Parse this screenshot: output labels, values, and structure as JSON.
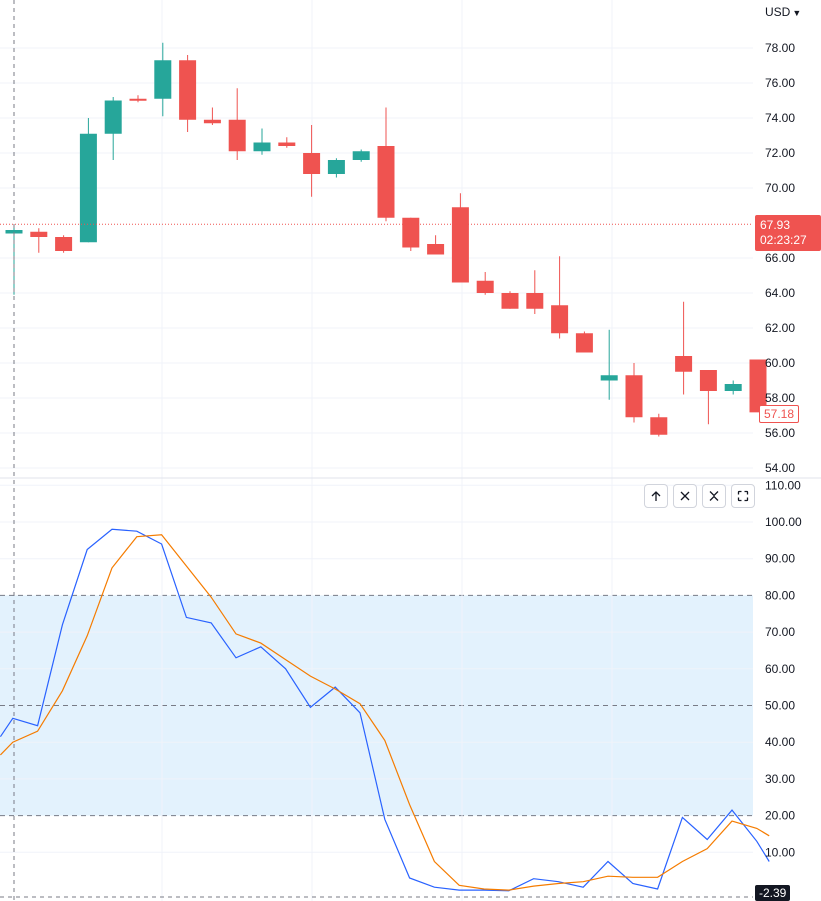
{
  "header": {
    "currency": "USD",
    "currency_icon": "chevron-down-icon"
  },
  "price_label": {
    "price": "67.93",
    "countdown": "02:23:27",
    "color": "#ef5350"
  },
  "last_label": {
    "value": "57.18",
    "color": "#ef5350"
  },
  "osc_label": {
    "value": "-2.39"
  },
  "pane_controls": [
    "arrow-up-icon",
    "close-icon",
    "collapse-icon",
    "maximize-icon"
  ],
  "colors": {
    "up": "#26a69a",
    "down": "#ef5350",
    "k_line": "#2962ff",
    "d_line": "#f57c00",
    "band": "#e3f2fd"
  },
  "chart_data": [
    {
      "type": "candlestick",
      "title": "",
      "ylim": [
        53.8,
        81.5
      ],
      "y_ticks": [
        "78.00",
        "76.00",
        "74.00",
        "72.00",
        "70.00",
        "66.00",
        "64.00",
        "62.00",
        "60.00",
        "58.00",
        "56.00",
        "54.00"
      ],
      "grid": true,
      "current_price": 67.93,
      "candles": [
        {
          "o": 67.4,
          "h": 67.8,
          "l": 63.9,
          "c": 67.6
        },
        {
          "o": 67.5,
          "h": 67.7,
          "l": 66.3,
          "c": 67.2
        },
        {
          "o": 67.2,
          "h": 67.3,
          "l": 66.3,
          "c": 66.4
        },
        {
          "o": 66.9,
          "h": 74.0,
          "l": 66.9,
          "c": 73.1
        },
        {
          "o": 73.1,
          "h": 75.2,
          "l": 71.6,
          "c": 75.0
        },
        {
          "o": 75.1,
          "h": 75.3,
          "l": 74.9,
          "c": 75.0
        },
        {
          "o": 75.1,
          "h": 78.3,
          "l": 74.1,
          "c": 77.3
        },
        {
          "o": 77.3,
          "h": 77.6,
          "l": 73.2,
          "c": 73.9
        },
        {
          "o": 73.9,
          "h": 74.6,
          "l": 73.6,
          "c": 73.7
        },
        {
          "o": 73.9,
          "h": 75.7,
          "l": 71.6,
          "c": 72.1
        },
        {
          "o": 72.1,
          "h": 73.4,
          "l": 71.9,
          "c": 72.6
        },
        {
          "o": 72.6,
          "h": 72.9,
          "l": 72.3,
          "c": 72.4
        },
        {
          "o": 72.0,
          "h": 73.6,
          "l": 69.5,
          "c": 70.8
        },
        {
          "o": 70.8,
          "h": 71.7,
          "l": 70.6,
          "c": 71.6
        },
        {
          "o": 71.6,
          "h": 72.2,
          "l": 71.5,
          "c": 72.1
        },
        {
          "o": 72.4,
          "h": 74.6,
          "l": 68.1,
          "c": 68.3
        },
        {
          "o": 68.3,
          "h": 68.3,
          "l": 66.4,
          "c": 66.6
        },
        {
          "o": 66.8,
          "h": 67.3,
          "l": 66.2,
          "c": 66.2
        },
        {
          "o": 68.9,
          "h": 69.7,
          "l": 64.6,
          "c": 64.6
        },
        {
          "o": 64.7,
          "h": 65.2,
          "l": 63.9,
          "c": 64.0
        },
        {
          "o": 64.0,
          "h": 64.1,
          "l": 63.1,
          "c": 63.1
        },
        {
          "o": 64.0,
          "h": 65.3,
          "l": 62.8,
          "c": 63.1
        },
        {
          "o": 63.3,
          "h": 66.1,
          "l": 61.4,
          "c": 61.7
        },
        {
          "o": 61.7,
          "h": 61.8,
          "l": 60.6,
          "c": 60.6
        },
        {
          "o": 59.0,
          "h": 61.9,
          "l": 57.9,
          "c": 59.3
        },
        {
          "o": 59.3,
          "h": 60.0,
          "l": 56.6,
          "c": 56.9
        },
        {
          "o": 56.9,
          "h": 57.1,
          "l": 55.8,
          "c": 55.9
        },
        {
          "o": 60.4,
          "h": 63.5,
          "l": 58.2,
          "c": 59.5
        },
        {
          "o": 59.6,
          "h": 59.6,
          "l": 56.5,
          "c": 58.4
        },
        {
          "o": 58.4,
          "h": 59.0,
          "l": 58.2,
          "c": 58.8
        },
        {
          "o": 60.2,
          "h": 60.2,
          "l": 57.2,
          "c": 57.18
        }
      ]
    },
    {
      "type": "line",
      "title": "",
      "ylim": [
        -2.4,
        110
      ],
      "y_ticks": [
        "110.00",
        "100.00",
        "90.00",
        "80.00",
        "70.00",
        "60.00",
        "50.00",
        "40.00",
        "30.00",
        "20.00",
        "10.00"
      ],
      "bands": {
        "upper": 80,
        "middle": 50,
        "lower": 20
      },
      "x": [
        -0.55,
        -0.05,
        0.95,
        1.95,
        2.95,
        3.95,
        4.95,
        5.95,
        6.95,
        7.95,
        8.95,
        9.95,
        10.95,
        11.95,
        12.95,
        13.95,
        14.95,
        15.95,
        16.95,
        17.95,
        18.95,
        19.95,
        20.95,
        21.95,
        22.95,
        23.95,
        24.95,
        25.95,
        26.95,
        27.95,
        28.95,
        29.95,
        30.45
      ],
      "series": [
        {
          "values": [
            41.5,
            46.5,
            44.5,
            72.0,
            92.5,
            98.0,
            97.5,
            94.0,
            74.0,
            72.5,
            63.0,
            66.0,
            60.0,
            49.5,
            55.0,
            48.0,
            19.0,
            3.0,
            0.5,
            -0.3,
            -0.3,
            -0.5,
            2.8,
            2.0,
            0.5,
            7.5,
            1.5,
            0.0,
            19.5,
            13.5,
            21.5,
            13.0,
            7.5
          ]
        },
        {
          "values": [
            36.5,
            40.0,
            43.0,
            54.0,
            69.0,
            87.5,
            96.0,
            96.5,
            88.0,
            79.5,
            69.5,
            67.0,
            62.5,
            58.0,
            54.5,
            50.5,
            40.5,
            23.0,
            7.5,
            1.0,
            0.0,
            -0.3,
            0.8,
            1.5,
            2.0,
            3.5,
            3.2,
            3.2,
            7.5,
            11.0,
            18.5,
            16.5,
            14.5
          ]
        }
      ]
    }
  ]
}
